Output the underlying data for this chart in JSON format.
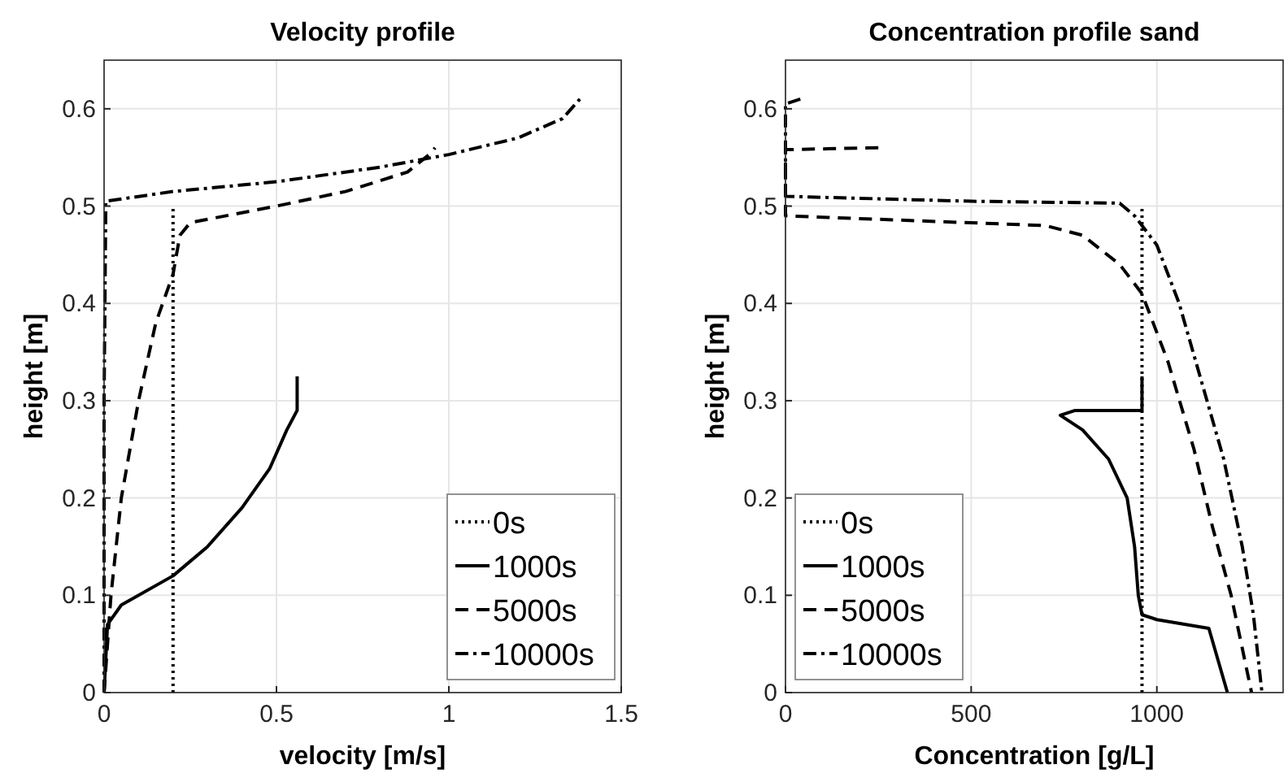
{
  "chart_data": [
    {
      "type": "line",
      "title": "Velocity profile",
      "xlabel": "velocity [m/s]",
      "ylabel": "height [m]",
      "xlim": [
        0,
        1.5
      ],
      "xticks": [
        0,
        0.5,
        1,
        1.5
      ],
      "ylim": [
        0,
        0.65
      ],
      "yticks": [
        0,
        0.1,
        0.2,
        0.3,
        0.4,
        0.5,
        0.6
      ],
      "grid": true,
      "legend": "bottom right",
      "series": [
        {
          "name": "0s",
          "color": "#000000",
          "line_style": "dotted",
          "x": [
            0.2,
            0.2
          ],
          "values": [
            0,
            0.5
          ]
        },
        {
          "name": "1000s",
          "color": "#000000",
          "line_style": "solid",
          "x": [
            0,
            0.01,
            0.05,
            0.2,
            0.3,
            0.4,
            0.48,
            0.53,
            0.56,
            0.56
          ],
          "values": [
            0,
            0.07,
            0.09,
            0.12,
            0.15,
            0.19,
            0.23,
            0.27,
            0.29,
            0.325
          ]
        },
        {
          "name": "5000s",
          "color": "#000000",
          "line_style": "dashed",
          "x": [
            0,
            0.01,
            0.02,
            0.05,
            0.1,
            0.15,
            0.2,
            0.22,
            0.25,
            0.5,
            0.7,
            0.88,
            0.95,
            0.96
          ],
          "values": [
            0,
            0.05,
            0.1,
            0.2,
            0.3,
            0.38,
            0.43,
            0.47,
            0.483,
            0.5,
            0.515,
            0.535,
            0.555,
            0.56
          ]
        },
        {
          "name": "10000s",
          "color": "#000000",
          "line_style": "dashdot",
          "x": [
            0,
            0,
            0.005,
            0.2,
            0.5,
            0.8,
            1,
            1.2,
            1.33,
            1.38
          ],
          "values": [
            0,
            0.3,
            0.505,
            0.515,
            0.525,
            0.54,
            0.553,
            0.57,
            0.59,
            0.61
          ]
        }
      ]
    },
    {
      "type": "line",
      "title": "Concentration profile sand",
      "xlabel": "Concentration [g/L]",
      "ylabel": "height [m]",
      "xlim": [
        0,
        1340
      ],
      "xticks": [
        0,
        500,
        1000
      ],
      "ylim": [
        0,
        0.65
      ],
      "yticks": [
        0,
        0.1,
        0.2,
        0.3,
        0.4,
        0.5,
        0.6
      ],
      "grid": true,
      "legend": "bottom left",
      "series": [
        {
          "name": "0s",
          "color": "#000000",
          "line_style": "dotted",
          "x": [
            960,
            960
          ],
          "values": [
            0,
            0.5
          ]
        },
        {
          "name": "1000s",
          "color": "#000000",
          "line_style": "solid",
          "x": [
            1190,
            1140,
            1000,
            960,
            950,
            940,
            920,
            870,
            800,
            740,
            780,
            960,
            960
          ],
          "values": [
            0,
            0.066,
            0.075,
            0.08,
            0.1,
            0.15,
            0.2,
            0.24,
            0.27,
            0.285,
            0.29,
            0.29,
            0.325
          ]
        },
        {
          "name": "5000s",
          "color": "#000000",
          "line_style": "dashed",
          "x": [
            250,
            0,
            0,
            700,
            800,
            900,
            960,
            1030,
            1100,
            1150,
            1200,
            1255
          ],
          "values": [
            0.56,
            0.558,
            0.49,
            0.48,
            0.47,
            0.44,
            0.41,
            0.34,
            0.25,
            0.17,
            0.1,
            0
          ]
        },
        {
          "name": "10000s",
          "color": "#000000",
          "line_style": "dashdot",
          "x": [
            40,
            0,
            0,
            500,
            900,
            940,
            1000,
            1060,
            1120,
            1180,
            1230,
            1260,
            1283
          ],
          "values": [
            0.61,
            0.605,
            0.51,
            0.505,
            0.503,
            0.49,
            0.46,
            0.4,
            0.32,
            0.24,
            0.15,
            0.08,
            0
          ]
        }
      ]
    }
  ]
}
